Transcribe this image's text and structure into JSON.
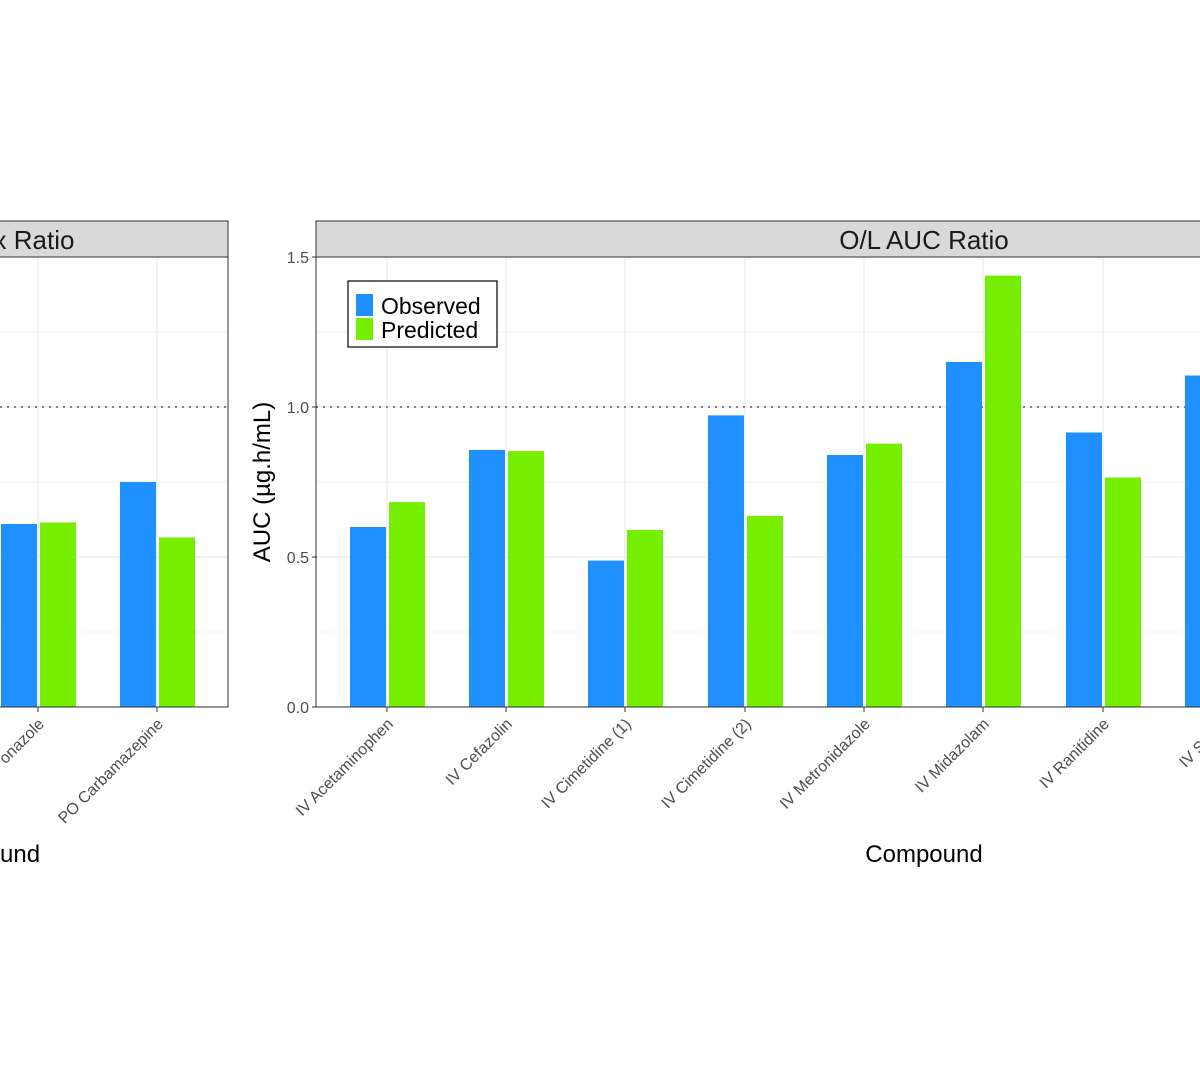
{
  "colors": {
    "observed": "#1e90ff",
    "predicted": "#76ee00",
    "strip_bg": "#d9d9d9",
    "grid": "#ebebeb",
    "reference_line": "#808080"
  },
  "chart_data": [
    {
      "type": "bar",
      "panel_title": "x Ratio",
      "xlabel": "und",
      "ylabel": "",
      "ylim": [
        0,
        1.5
      ],
      "yticks": [],
      "categories": [
        "onazole",
        "PO Carbamazepine"
      ],
      "series": [
        {
          "name": "Observed",
          "values": [
            0.61,
            0.75
          ]
        },
        {
          "name": "Predicted",
          "values": [
            0.615,
            0.565
          ]
        }
      ],
      "reference_line": 1.0,
      "grid": true
    },
    {
      "type": "bar",
      "panel_title": "O/L AUC Ratio",
      "xlabel": "Compound",
      "ylabel": "AUC (µg.h/mL)",
      "ylim": [
        0,
        1.5
      ],
      "yticks": [
        "0.0",
        "0.5",
        "1.0",
        "1.5"
      ],
      "categories": [
        "IV Acetaminophen",
        "IV Cefazolin",
        "IV Cimetidine (1)",
        "IV Cimetidine (2)",
        "IV Metronidazole",
        "IV Midazolam",
        "IV Ranitidine",
        "IV Sufen"
      ],
      "series": [
        {
          "name": "Observed",
          "values": [
            0.6,
            0.857,
            0.488,
            0.972,
            0.84,
            1.15,
            0.915,
            1.105
          ]
        },
        {
          "name": "Predicted",
          "values": [
            0.683,
            0.853,
            0.59,
            0.637,
            0.878,
            1.438,
            0.765,
            null
          ]
        }
      ],
      "reference_line": 1.0,
      "grid": true,
      "legend": {
        "position": "top-left",
        "entries": [
          "Observed",
          "Predicted"
        ]
      }
    }
  ]
}
